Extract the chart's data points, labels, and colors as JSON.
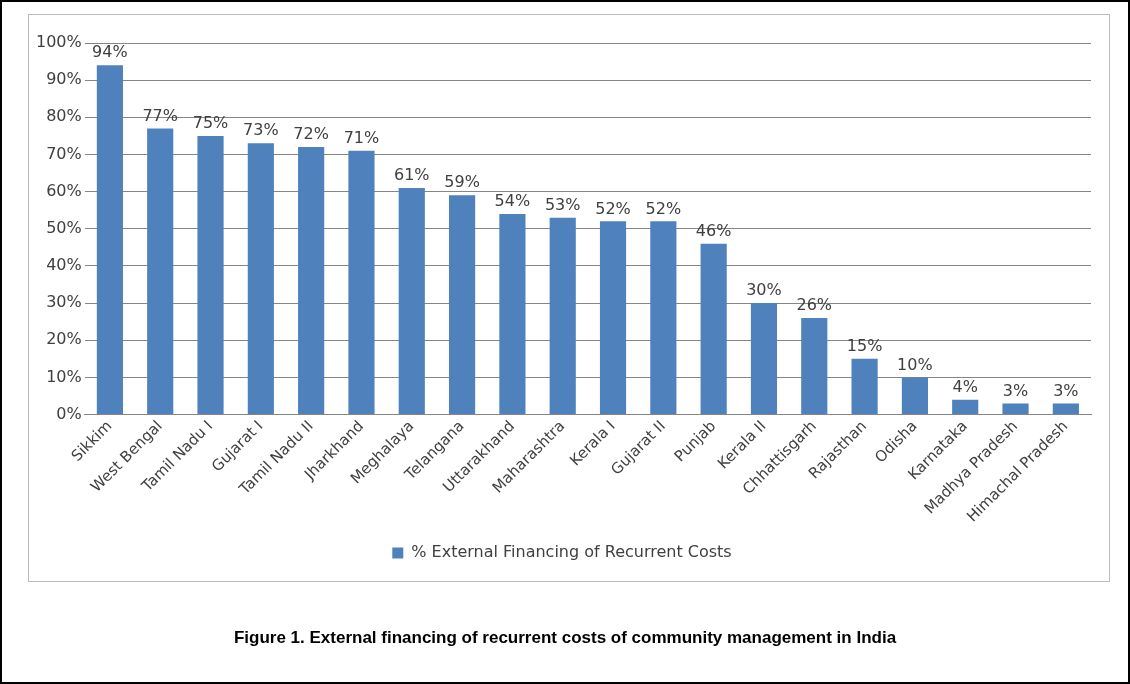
{
  "chart_data": {
    "type": "bar",
    "categories": [
      "Sikkim",
      "West Bengal",
      "Tamil Nadu I",
      "Gujarat I",
      "Tamil Nadu II",
      "Jharkhand",
      "Meghalaya",
      "Telangana",
      "Uttarakhand",
      "Maharashtra",
      "Kerala I",
      "Gujarat II",
      "Punjab",
      "Kerala II",
      "Chhattisgarh",
      "Rajasthan",
      "Odisha",
      "Karnataka",
      "Madhya Pradesh",
      "Himachal Pradesh"
    ],
    "series": [
      {
        "name": "% External Financing of Recurrent Costs",
        "color": "#4f81bd",
        "values": [
          94,
          77,
          75,
          73,
          72,
          71,
          61,
          59,
          54,
          53,
          52,
          52,
          46,
          30,
          26,
          15,
          10,
          4,
          3,
          3
        ],
        "value_labels": [
          "94%",
          "77%",
          "75%",
          "73%",
          "72%",
          "71%",
          "61%",
          "59%",
          "54%",
          "53%",
          "52%",
          "52%",
          "46%",
          "30%",
          "26%",
          "15%",
          "10%",
          "4%",
          "3%",
          "3%"
        ]
      }
    ],
    "ylim": [
      0,
      100
    ],
    "yticks": [
      {
        "value": 0,
        "label": "0%"
      },
      {
        "value": 10,
        "label": "10%"
      },
      {
        "value": 20,
        "label": "20%"
      },
      {
        "value": 30,
        "label": "30%"
      },
      {
        "value": 40,
        "label": "40%"
      },
      {
        "value": 50,
        "label": "50%"
      },
      {
        "value": 60,
        "label": "60%"
      },
      {
        "value": 70,
        "label": "70%"
      },
      {
        "value": 80,
        "label": "80%"
      },
      {
        "value": 90,
        "label": "90%"
      },
      {
        "value": 100,
        "label": "100%"
      }
    ],
    "grid": "y",
    "legend": "bottom",
    "annotations": [
      "Figure 1. External financing of recurrent costs of community management in India"
    ]
  }
}
